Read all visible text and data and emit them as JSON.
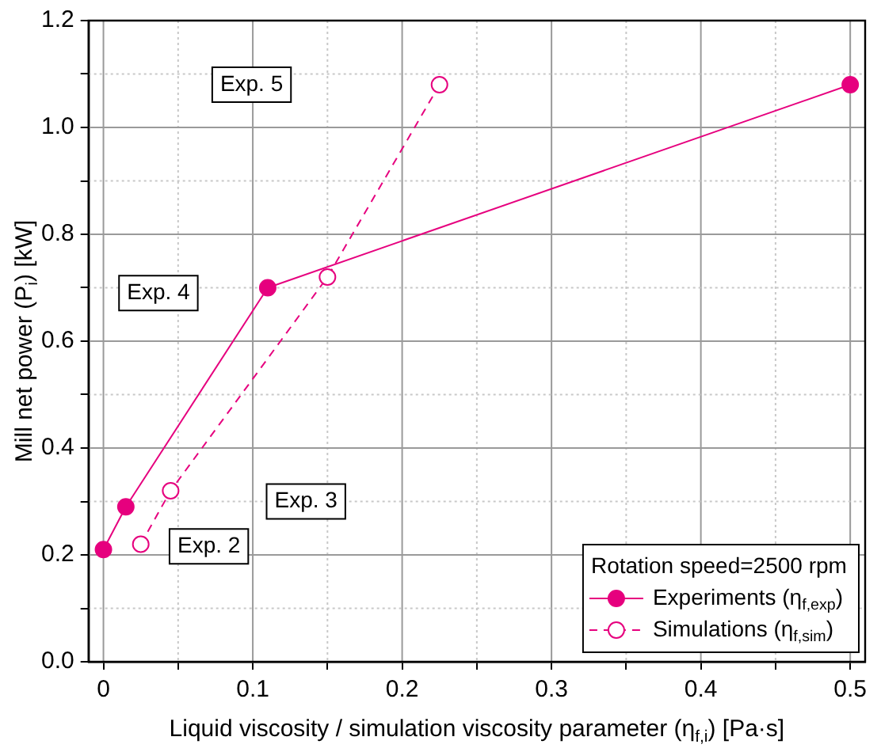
{
  "chart_data": {
    "type": "line",
    "xlabel": "Liquid viscosity / simulation viscosity parameter (η$_{f,i}$) [Pa·s]",
    "ylabel": "Mill net power (P$_{i}$) [kW]",
    "legend_title": "Rotation speed=2500 rpm",
    "series": [
      {
        "name": "Experiments (η$_{f,exp}$)",
        "color": "#e6007e",
        "x": [
          0,
          0.015,
          0.11,
          0.5
        ],
        "values": [
          0.21,
          0.29,
          0.7,
          1.08
        ],
        "line_style": "solid"
      },
      {
        "name": "Simulations (η$_{f,sim}$)",
        "color": "#e6007e",
        "x": [
          0.025,
          0.045,
          0.15,
          0.225
        ],
        "values": [
          0.22,
          0.32,
          0.72,
          1.08
        ],
        "line_style": "dashed"
      }
    ],
    "annotations": [
      "Exp. 5",
      "Exp. 4",
      "Exp. 3",
      "Exp. 2"
    ],
    "xlim": [
      -0.01,
      0.51
    ],
    "xticks": [
      0,
      {
        "value": 0.05,
        "label": null
      },
      0.1,
      {
        "value": 0.15,
        "label": null
      },
      0.2,
      {
        "value": 0.25,
        "label": null
      },
      0.3,
      {
        "value": 0.35,
        "label": null
      },
      0.4,
      {
        "value": 0.45,
        "label": null
      },
      0.5
    ],
    "ylim": [
      0,
      1.2
    ],
    "yticks": [
      "0.0",
      {
        "value": 0.1,
        "label": null
      },
      0.2,
      {
        "value": 0.3,
        "label": null
      },
      0.4,
      {
        "value": 0.5,
        "label": null
      },
      0.6,
      {
        "value": 0.7,
        "label": null
      },
      0.8,
      {
        "value": 0.9,
        "label": null
      },
      "1.0",
      {
        "value": 1.1,
        "label": null
      },
      1.2
    ],
    "grid": true,
    "legend": "bottom right",
    "marker": "circle"
  }
}
